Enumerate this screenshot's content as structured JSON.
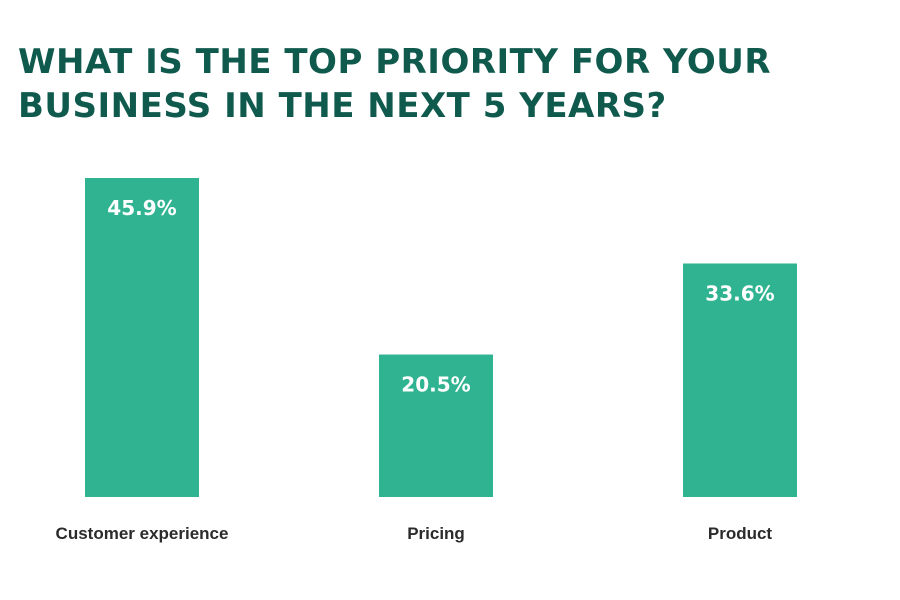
{
  "chart_data": {
    "type": "bar",
    "title_lines": [
      "WHAT IS THE TOP PRIORITY FOR YOUR",
      "BUSINESS IN THE NEXT 5 YEARS?"
    ],
    "categories": [
      "Customer experience",
      "Pricing",
      "Product"
    ],
    "values": [
      45.9,
      20.5,
      33.6
    ],
    "value_labels": [
      "45.9%",
      "20.5%",
      "33.6%"
    ],
    "unit": "%",
    "ylim": [
      0,
      45.9
    ],
    "grid": false,
    "legend": "none",
    "colors": {
      "bar": "#30b391",
      "title": "#0f5a4d",
      "category_text": "#2b2b2b",
      "value_text": "#ffffff"
    }
  }
}
